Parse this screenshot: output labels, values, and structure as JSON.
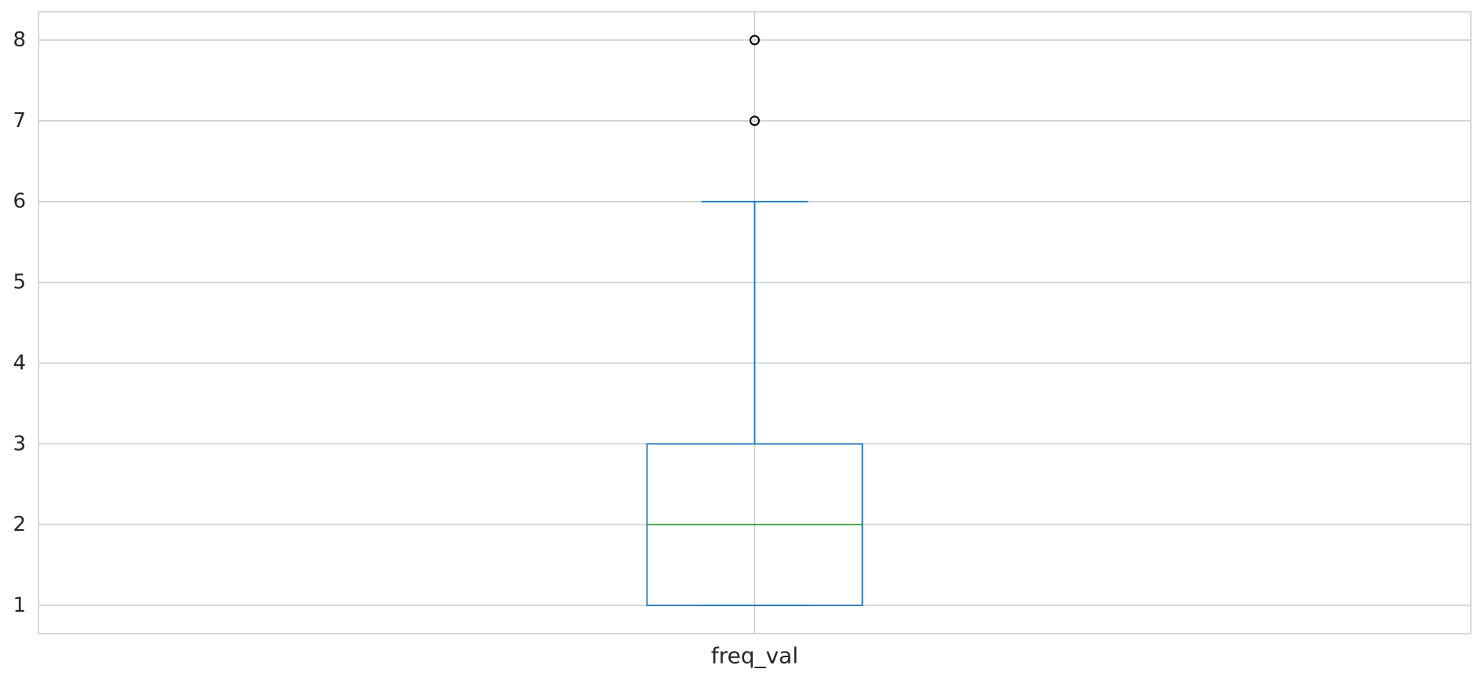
{
  "chart_data": {
    "type": "box",
    "categories": [
      "freq_val"
    ],
    "series": [
      {
        "category": "freq_val",
        "whisker_low": 1,
        "q1": 1,
        "median": 2,
        "q3": 3,
        "whisker_high": 6,
        "outliers": [
          7,
          8
        ]
      }
    ],
    "y_ticks": [
      "1",
      "2",
      "3",
      "4",
      "5",
      "6",
      "7",
      "8"
    ],
    "ylim": [
      0.65,
      8.35
    ],
    "title": "",
    "xlabel": "",
    "ylabel": "",
    "grid": true,
    "colors": {
      "box": "#1f77b4",
      "median": "#2ca02c",
      "outlier_edge": "#000000",
      "grid": "#cccccc",
      "frame": "#cccccc"
    }
  }
}
